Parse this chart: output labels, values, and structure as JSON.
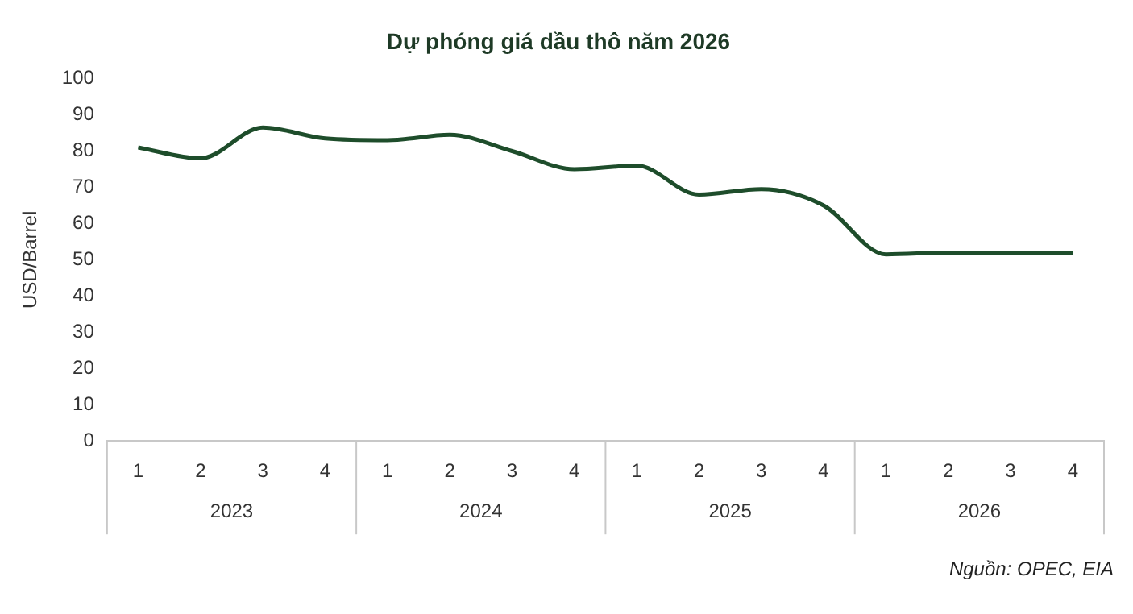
{
  "chart_data": {
    "type": "line",
    "title": "Dự phóng giá dầu thô năm 2026",
    "ylabel": "USD/Barrel",
    "categories": [
      "1",
      "2",
      "3",
      "4",
      "1",
      "2",
      "3",
      "4",
      "1",
      "2",
      "3",
      "4",
      "1",
      "2",
      "3",
      "4"
    ],
    "series": [
      {
        "color": "#1e4d2b",
        "values": [
          81,
          78,
          86.5,
          83.5,
          83,
          84.5,
          80,
          75,
          76,
          68,
          69.5,
          65,
          51.5,
          52,
          52,
          52
        ]
      }
    ],
    "ylim": [
      0,
      100
    ],
    "yticks": [
      0,
      10,
      20,
      30,
      40,
      50,
      60,
      70,
      80,
      90,
      100
    ],
    "grid": false,
    "legend": false,
    "marker": "none",
    "line_style": "solid",
    "annotations": [
      "2023",
      "2024",
      "2025",
      "2026",
      "Nguồn: OPEC, EIA"
    ]
  }
}
